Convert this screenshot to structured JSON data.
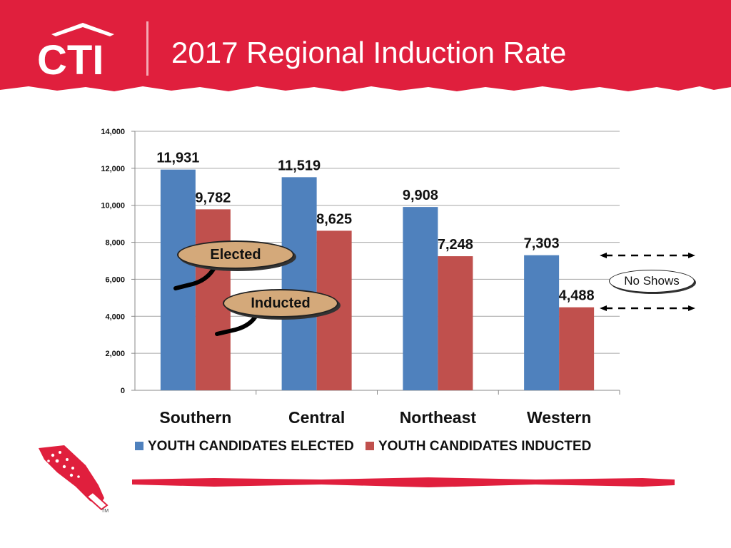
{
  "slide": {
    "title": "2017 Regional Induction Rate",
    "logo_text": "CTI",
    "trademark": "TM"
  },
  "colors": {
    "header_red": "#e01f3d",
    "elected_blue": "#4f81bd",
    "inducted_red": "#c0504d",
    "callout_tan": "#d4a97a"
  },
  "annotations": {
    "elected_callout": "Elected",
    "inducted_callout": "Inducted",
    "no_shows": "No Shows"
  },
  "chart_data": {
    "type": "bar",
    "categories": [
      "Southern",
      "Central",
      "Northeast",
      "Western"
    ],
    "series": [
      {
        "name": "YOUTH CANDIDATES ELECTED",
        "values": [
          11931,
          11519,
          9908,
          7303
        ],
        "labels": [
          "11,931",
          "11,519",
          "9,908",
          "7,303"
        ]
      },
      {
        "name": "YOUTH CANDIDATES INDUCTED",
        "values": [
          9782,
          8625,
          7248,
          4488
        ],
        "labels": [
          "9,782",
          "8,625",
          "7,248",
          "4,488"
        ]
      }
    ],
    "ylim": [
      0,
      14000
    ],
    "yticks": [
      0,
      2000,
      4000,
      6000,
      8000,
      10000,
      12000,
      14000
    ],
    "ytick_labels": [
      "0",
      "2,000",
      "4,000",
      "6,000",
      "8,000",
      "10,000",
      "12,000",
      "14,000"
    ],
    "grid": true,
    "legend_position": "bottom"
  }
}
